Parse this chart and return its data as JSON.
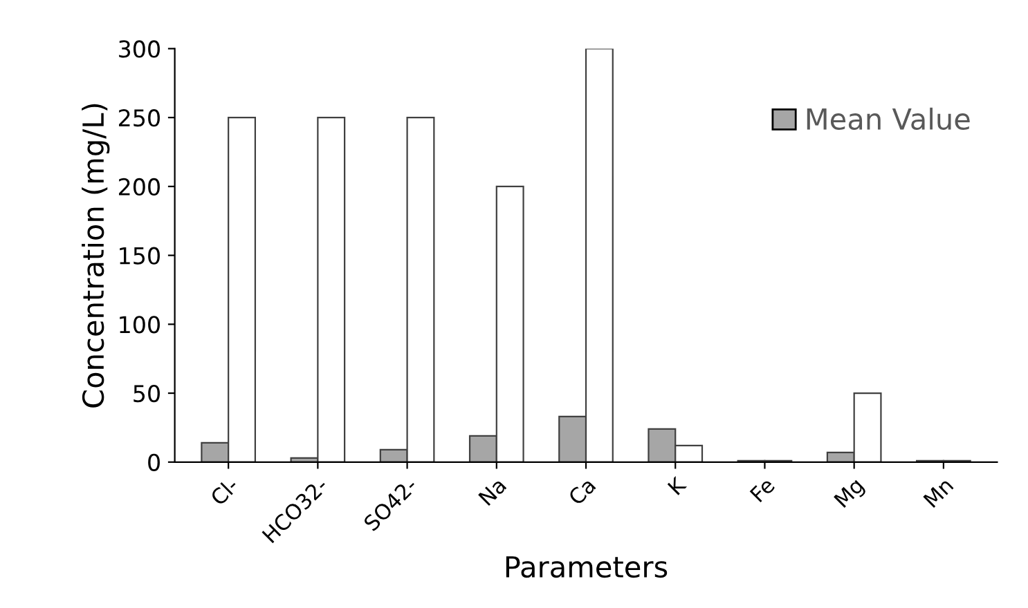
{
  "chart_data": {
    "type": "bar",
    "xlabel": "Parameters",
    "ylabel": "Concentration (mg/L)",
    "categories": [
      "Cl-",
      "HCO32-",
      "SO42-",
      "Na",
      "Ca",
      "K",
      "Fe",
      "Mg",
      "Mn"
    ],
    "series": [
      {
        "name": "Mean Value",
        "color": "#a6a6a6",
        "values": [
          14,
          3,
          9,
          19,
          33,
          24,
          1,
          7,
          1
        ]
      },
      {
        "color": "#ffffff",
        "values": [
          250,
          250,
          250,
          200,
          300,
          12,
          1,
          50,
          1
        ]
      }
    ],
    "ylim": [
      0,
      300
    ],
    "yticks": [
      0,
      50,
      100,
      150,
      200,
      250,
      300
    ],
    "grid": false,
    "legend": "top right"
  }
}
